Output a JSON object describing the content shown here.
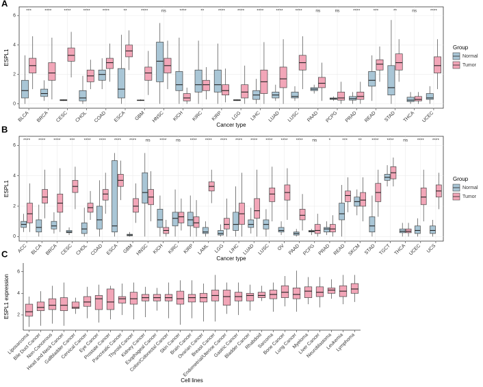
{
  "chart_data": [
    {
      "type": "box",
      "panel_label": "A",
      "y_label": "ESPL1",
      "x_label": "Cancer type",
      "legend_title": "Group",
      "grid": true,
      "ylim": [
        -0.3,
        6.6
      ],
      "yticks": [
        0,
        2,
        4,
        6
      ],
      "categories": [
        "BLCA",
        "BRCA",
        "CESC",
        "CHOL",
        "COAD",
        "ESCA",
        "GBM",
        "HNSC",
        "KICH",
        "KIRC",
        "KIRP",
        "LGG",
        "LIHC",
        "LUAD",
        "LUSC",
        "PAAD",
        "PCPG",
        "PRAD",
        "READ",
        "STAD",
        "THCA",
        "UCEC"
      ],
      "significance": [
        "***",
        "****",
        "****",
        "****",
        "****",
        "**",
        "****",
        "ns",
        "****",
        "**",
        "****",
        "****",
        "****",
        "****",
        "****",
        "ns",
        "ns",
        "****",
        "***",
        "**",
        "ns",
        "****"
      ],
      "series": [
        {
          "name": "Normal",
          "color": "#a9c6d6",
          "values": [
            [
              0,
              0.4,
              0.9,
              1.6,
              3.3
            ],
            [
              0.2,
              0.5,
              0.7,
              1.0,
              1.6
            ],
            [
              0.2,
              0.22,
              0.25,
              0.28,
              0.3
            ],
            [
              0,
              0.2,
              0.4,
              0.9,
              1.9
            ],
            [
              1,
              1.6,
              2.0,
              2.3,
              3.1
            ],
            [
              0,
              0.4,
              1,
              2.4,
              4.7
            ],
            [
              0.2,
              0.22,
              0.24,
              0.26,
              0.3
            ],
            [
              0,
              1.5,
              2.9,
              4.2,
              5.5
            ],
            [
              0,
              0.9,
              1.3,
              2.2,
              4.5
            ],
            [
              0,
              0.8,
              1.3,
              2.3,
              4.3
            ],
            [
              0,
              0.8,
              1.3,
              2.3,
              4.1
            ],
            [
              0.2,
              0.22,
              0.25,
              0.28,
              0.3
            ],
            [
              0,
              0.3,
              0.6,
              0.9,
              1.7
            ],
            [
              0.2,
              0.4,
              0.6,
              0.8,
              1.3
            ],
            [
              0.2,
              0.4,
              0.5,
              0.8,
              1.2
            ],
            [
              0.7,
              0.9,
              1.0,
              1.1,
              1.3
            ],
            [
              0.2,
              0.3,
              0.35,
              0.4,
              0.5
            ],
            [
              0,
              0.25,
              0.35,
              0.5,
              0.8
            ],
            [
              0.2,
              1.2,
              1.6,
              2.2,
              3.3
            ],
            [
              0,
              0.6,
              1.1,
              2.6,
              5.7
            ],
            [
              0,
              0.15,
              0.25,
              0.45,
              0.8
            ],
            [
              0,
              0.3,
              0.4,
              0.7,
              1.2
            ]
          ]
        },
        {
          "name": "Tumor",
          "color": "#f2a6b8",
          "values": [
            [
              1,
              2.1,
              2.6,
              3.1,
              4.6
            ],
            [
              0.3,
              1.6,
              2.1,
              2.8,
              4.5
            ],
            [
              1.8,
              2.9,
              3.3,
              3.8,
              4.9
            ],
            [
              1,
              1.5,
              1.9,
              2.3,
              3
            ],
            [
              1.5,
              2.4,
              2.8,
              3.1,
              4.1
            ],
            [
              2.3,
              3.2,
              3.6,
              4.0,
              5
            ],
            [
              0.6,
              1.6,
              2.1,
              2.5,
              3.6
            ],
            [
              1,
              2.1,
              2.6,
              3.1,
              4.3
            ],
            [
              0,
              0.2,
              0.4,
              0.7,
              1.1
            ],
            [
              0.3,
              0.9,
              1.3,
              1.6,
              2.5
            ],
            [
              0.1,
              0.6,
              0.9,
              1.3,
              2.4
            ],
            [
              0,
              0.4,
              0.8,
              1.3,
              2.6
            ],
            [
              0,
              0.7,
              1.5,
              2.3,
              4.2
            ],
            [
              0,
              1.1,
              1.7,
              2.5,
              4.4
            ],
            [
              1,
              2.3,
              2.8,
              3.3,
              4.6
            ],
            [
              0.2,
              1.1,
              1.4,
              1.8,
              2.8
            ],
            [
              0,
              0.25,
              0.4,
              0.8,
              1.5
            ],
            [
              0,
              0.3,
              0.5,
              0.8,
              1.5
            ],
            [
              1.5,
              2.3,
              2.7,
              3.0,
              3.9
            ],
            [
              1.5,
              2.3,
              2.8,
              3.4,
              4.4
            ],
            [
              0,
              0.2,
              0.3,
              0.5,
              0.8
            ],
            [
              1,
              2.1,
              2.6,
              3.2,
              4.4
            ]
          ]
        }
      ]
    },
    {
      "type": "box",
      "panel_label": "B",
      "y_label": "ESPL1",
      "x_label": "Cancer type",
      "legend_title": "Group",
      "grid": true,
      "ylim": [
        -0.3,
        6.6
      ],
      "yticks": [
        0,
        2,
        4,
        6
      ],
      "categories": [
        "ACC",
        "BLCA",
        "BRCA",
        "CESC",
        "CHOL",
        "COAD",
        "ESCA",
        "GBM",
        "HNSC",
        "KICH",
        "KIRC",
        "KIRP",
        "LAML",
        "LGG",
        "LIHC",
        "LUAD",
        "LUSC",
        "OV",
        "PAAD",
        "PCPG",
        "PRAD",
        "READ",
        "SKCM",
        "STAD",
        "TGCT",
        "THCA",
        "UCEC",
        "UCS"
      ],
      "significance": [
        "****",
        "****",
        "****",
        "***",
        "****",
        "****",
        "****",
        "****",
        "ns",
        "****",
        "ns",
        "****",
        "****",
        "****",
        "****",
        "****",
        "****",
        "****",
        "****",
        "ns",
        "*",
        "***",
        "**",
        "****",
        "****",
        "ns",
        "****",
        "****"
      ],
      "series": [
        {
          "name": "Normal",
          "color": "#a9c6d6",
          "values": [
            [
              0.3,
              0.6,
              0.8,
              1.0,
              1.5
            ],
            [
              0,
              0.3,
              0.6,
              1.1,
              2.1
            ],
            [
              0.2,
              0.5,
              0.7,
              1.0,
              1.6
            ],
            [
              0.1,
              0.25,
              0.3,
              0.4,
              0.6
            ],
            [
              0,
              0.2,
              0.5,
              0.9,
              1.9
            ],
            [
              0,
              0.5,
              1.1,
              2.0,
              3.7
            ],
            [
              0,
              0.3,
              0.7,
              5.0,
              5.5
            ],
            [
              0,
              0.05,
              0.1,
              0.15,
              0.3
            ],
            [
              0,
              2.2,
              2.9,
              4.2,
              5.5
            ],
            [
              0,
              0.6,
              1.1,
              1.8,
              2.7
            ],
            [
              0,
              0.7,
              1.2,
              1.6,
              3.1
            ],
            [
              0,
              0.7,
              1.1,
              1.6,
              2.7
            ],
            [
              0,
              0.2,
              0.3,
              0.6,
              1.0
            ],
            [
              0,
              0.1,
              0.2,
              0.4,
              0.8
            ],
            [
              0,
              0.4,
              0.8,
              1.6,
              3.3
            ],
            [
              0.2,
              0.6,
              0.8,
              1.1,
              1.9
            ],
            [
              0,
              0.5,
              0.8,
              1.1,
              1.8
            ],
            [
              0.1,
              0.3,
              0.4,
              0.6,
              1.0
            ],
            [
              0,
              0.1,
              0.2,
              0.3,
              0.5
            ],
            [
              0.1,
              0.3,
              0.35,
              0.4,
              0.5
            ],
            [
              0.1,
              0.3,
              0.5,
              0.6,
              1.0
            ],
            [
              0,
              1.1,
              1.5,
              2.2,
              3.4
            ],
            [
              1.4,
              2.0,
              2.3,
              2.6,
              3.1
            ],
            [
              0,
              0.3,
              0.7,
              1.3,
              2.7
            ],
            [
              3.3,
              3.7,
              3.9,
              4.1,
              4.7
            ],
            [
              0,
              0.25,
              0.35,
              0.5,
              0.9
            ],
            [
              0,
              0.2,
              0.4,
              0.7,
              1.2
            ],
            [
              0,
              0.2,
              0.4,
              0.7,
              1.1
            ]
          ]
        },
        {
          "name": "Tumor",
          "color": "#f2a6b8",
          "values": [
            [
              0.3,
              0.9,
              1.5,
              2.2,
              3.5
            ],
            [
              1.2,
              2.2,
              2.6,
              3.1,
              4.4
            ],
            [
              0.3,
              1.6,
              2.2,
              2.8,
              4.5
            ],
            [
              1.8,
              2.9,
              3.3,
              3.7,
              4.6
            ],
            [
              1.1,
              1.6,
              1.9,
              2.2,
              3
            ],
            [
              1.5,
              2.4,
              2.8,
              3.1,
              4.2
            ],
            [
              2.4,
              3.3,
              3.7,
              4.1,
              5
            ],
            [
              0.9,
              1.6,
              2.0,
              2.5,
              3.5
            ],
            [
              1.0,
              2.1,
              2.6,
              3.1,
              4.3
            ],
            [
              0,
              0.2,
              0.4,
              0.6,
              1.1
            ],
            [
              0.4,
              0.9,
              1.3,
              1.6,
              2.5
            ],
            [
              0,
              0.6,
              0.9,
              1.3,
              2.4
            ],
            [
              2.2,
              3.0,
              3.3,
              3.6,
              4.4
            ],
            [
              0,
              0.5,
              0.8,
              1.2,
              2.5
            ],
            [
              0,
              0.8,
              1.5,
              2.2,
              4.2
            ],
            [
              0,
              1.2,
              1.7,
              2.5,
              4.4
            ],
            [
              1,
              2.3,
              2.8,
              3.2,
              4.6
            ],
            [
              1.1,
              2.4,
              2.9,
              3.4,
              4.5
            ],
            [
              0.4,
              1.1,
              1.4,
              1.8,
              2.8
            ],
            [
              0,
              0.2,
              0.4,
              0.8,
              1.5
            ],
            [
              0,
              0.3,
              0.5,
              0.8,
              1.4
            ],
            [
              1.6,
              2.3,
              2.7,
              3.0,
              3.9
            ],
            [
              1.0,
              2.0,
              2.4,
              2.9,
              3.9
            ],
            [
              1.3,
              2.3,
              2.9,
              3.5,
              4.4
            ],
            [
              3.3,
              3.8,
              4.2,
              4.6,
              5.2
            ],
            [
              0,
              0.25,
              0.35,
              0.5,
              0.9
            ],
            [
              1,
              2.1,
              2.6,
              3.2,
              4.4
            ],
            [
              1.8,
              2.6,
              3.0,
              3.4,
              4.2
            ]
          ]
        }
      ]
    },
    {
      "type": "box",
      "panel_label": "C",
      "y_label": "ESPL1 expression",
      "x_label": "Cell lines",
      "grid": false,
      "ylim": [
        0.6,
        6.8
      ],
      "yticks": [
        2,
        4,
        6
      ],
      "categories": [
        "Liposarcoma",
        "Bile Duct Cancer",
        "Non-Cancerous",
        "Head and Neck Cancer",
        "Gallbladder Cancer",
        "Cervical Cancer",
        "Eye Cancer",
        "Prostate Cancer",
        "Pancreatic Cancer",
        "Thyroid Cancer",
        "Kidney Cancer",
        "Esophageal Cancer",
        "Colon/Colorectal Cancer",
        "Skin Cancer",
        "Brain Cancer",
        "Ovarian Cancer",
        "Breast Cancer",
        "Endometrial/Uterine Cancer",
        "Gastric Cancer",
        "Bladder Cancer",
        "Rhabdoid",
        "Sarcoma",
        "Bone Cancer",
        "Lung Cancer",
        "Myeloma",
        "Liver Cancer",
        "Neuroblastoma",
        "Leukemia",
        "Lymphoma"
      ],
      "series": [
        {
          "color": "#f2a6b8",
          "values": [
            [
              0.9,
              1.9,
              2.3,
              3.0,
              3.7
            ],
            [
              1,
              2.4,
              2.7,
              3.2,
              4.2
            ],
            [
              1.2,
              2.5,
              2.9,
              3.5,
              4.7
            ],
            [
              1,
              2.4,
              2.9,
              3.6,
              5
            ],
            [
              2.1,
              2.6,
              2.7,
              3.2,
              3.6
            ],
            [
              1.7,
              2.8,
              3.2,
              3.7,
              4.6
            ],
            [
              1.3,
              2.5,
              3.5,
              3.8,
              4.8
            ],
            [
              1.6,
              2.5,
              3.2,
              4.4,
              4.7
            ],
            [
              2,
              3.1,
              3.5,
              3.7,
              4.9
            ],
            [
              1.6,
              3.0,
              3.5,
              4.1,
              5
            ],
            [
              1.8,
              3.3,
              3.6,
              3.9,
              4.6
            ],
            [
              2.4,
              3.3,
              3.6,
              3.9,
              4.5
            ],
            [
              1.7,
              3.3,
              3.6,
              3.9,
              5
            ],
            [
              1.1,
              3.0,
              3.5,
              4.2,
              5.2
            ],
            [
              1.7,
              3.2,
              3.6,
              3.9,
              5.2
            ],
            [
              1.4,
              3.2,
              3.6,
              4.0,
              4.9
            ],
            [
              1.4,
              3.3,
              3.8,
              4.3,
              5.7
            ],
            [
              2.1,
              2.9,
              3.7,
              4.3,
              5
            ],
            [
              2,
              3.3,
              3.7,
              4.1,
              5
            ],
            [
              2.4,
              3.3,
              3.8,
              4.0,
              4.8
            ],
            [
              3.3,
              3.6,
              3.8,
              4.1,
              4.7
            ],
            [
              2.3,
              3.5,
              3.9,
              4.3,
              5
            ],
            [
              2.8,
              3.6,
              4.1,
              4.7,
              5.6
            ],
            [
              2.3,
              3.5,
              3.9,
              4.5,
              6.1
            ],
            [
              3,
              3.6,
              4.2,
              4.6,
              5.5
            ],
            [
              2.7,
              3.7,
              4.1,
              4.6,
              5.5
            ],
            [
              3.5,
              4.0,
              4.3,
              4.5,
              5.3
            ],
            [
              3,
              3.7,
              4.2,
              4.7,
              5.7
            ],
            [
              3.2,
              4.0,
              4.4,
              4.9,
              5.7
            ]
          ]
        }
      ]
    }
  ]
}
